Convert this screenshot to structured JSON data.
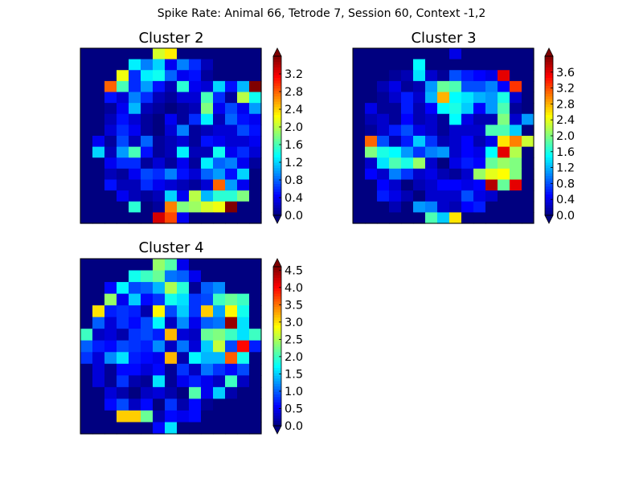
{
  "figure": {
    "title": "Spike Rate: Animal 66, Tetrode 7, Session 60, Context -1,2"
  },
  "colormap": {
    "name": "jet",
    "background_value": 0,
    "colorbar_extend": "both"
  },
  "chart_data": [
    {
      "type": "heatmap",
      "title": "Cluster 2",
      "vmin": 0,
      "vmax": 3.6,
      "colorbar_ticks": [
        "0.0",
        "0.4",
        "0.8",
        "1.2",
        "1.6",
        "2.0",
        "2.4",
        "2.8",
        "3.2"
      ],
      "grid": [
        [
          0,
          0,
          0,
          0,
          0,
          0,
          2.1,
          2.3,
          0,
          0,
          0,
          0,
          0,
          0,
          0
        ],
        [
          0,
          0,
          0,
          0,
          1.3,
          0.9,
          1.2,
          0.4,
          0.9,
          0.6,
          0.2,
          0,
          0,
          0,
          0
        ],
        [
          0,
          0,
          0,
          2.2,
          0.6,
          1.3,
          1.4,
          0.8,
          0.4,
          0.5,
          0.1,
          0,
          0,
          0,
          0
        ],
        [
          0,
          0,
          2.8,
          1.6,
          0.6,
          1.0,
          0.5,
          0.2,
          1.5,
          0.4,
          0.3,
          1.2,
          0.5,
          1.1,
          3.6
        ],
        [
          0,
          0,
          0.5,
          0.3,
          0.9,
          0.6,
          0.2,
          0.1,
          0.3,
          0.3,
          1.6,
          0.6,
          0.1,
          2.0,
          1.4
        ],
        [
          0,
          0,
          0.1,
          0.4,
          1.1,
          0.2,
          0.1,
          0,
          0.1,
          0.2,
          1.8,
          0.4,
          0.7,
          0.4,
          1.0
        ],
        [
          0,
          0,
          0.2,
          0.5,
          0.3,
          0.1,
          0,
          0.4,
          0.1,
          0.6,
          1.3,
          0.2,
          0.8,
          0.5,
          0.4
        ],
        [
          0,
          0,
          0.3,
          0.6,
          0.4,
          0.1,
          0,
          0.3,
          0.9,
          0.1,
          0.2,
          0.3,
          0.3,
          0.7,
          0.5
        ],
        [
          0,
          0.4,
          0.1,
          0.7,
          0.2,
          0.8,
          0.1,
          0.2,
          0.3,
          0.1,
          0.5,
          0.4,
          0.3,
          0.3,
          0.4
        ],
        [
          0,
          1.2,
          0.2,
          1.0,
          1.6,
          0.5,
          0.1,
          0.2,
          1.3,
          0.2,
          0.2,
          1.4,
          0.4,
          0.6,
          0.3
        ],
        [
          0,
          0,
          0.4,
          0.6,
          0.6,
          0.1,
          0.3,
          0.1,
          0.4,
          0.1,
          1.3,
          0.8,
          0.9,
          0.4,
          0.1
        ],
        [
          0,
          0,
          0.2,
          0.1,
          0.4,
          0.7,
          0.6,
          0.9,
          0.5,
          0.3,
          0.8,
          1.0,
          0.5,
          1.2,
          0
        ],
        [
          0,
          0,
          0.5,
          0.2,
          0.2,
          0.6,
          0.4,
          0.3,
          0.2,
          0.1,
          0.3,
          2.8,
          1.0,
          0.4,
          0
        ],
        [
          0,
          0,
          0,
          0.4,
          0.2,
          0.1,
          0.2,
          1.2,
          0.4,
          2.0,
          1.1,
          1.5,
          1.5,
          1.8,
          0
        ],
        [
          0,
          0,
          0,
          0,
          1.5,
          0,
          0.1,
          2.7,
          1.8,
          1.9,
          2.1,
          2.2,
          3.6,
          0,
          0
        ],
        [
          0,
          0,
          0,
          0,
          0,
          0,
          3.3,
          2.9,
          0.4,
          0,
          0,
          0,
          0,
          0,
          0
        ]
      ]
    },
    {
      "type": "heatmap",
      "title": "Cluster 3",
      "vmin": 0,
      "vmax": 4.0,
      "colorbar_ticks": [
        "0.0",
        "0.4",
        "0.8",
        "1.2",
        "1.6",
        "2.0",
        "2.4",
        "2.8",
        "3.2",
        "3.6"
      ],
      "grid": [
        [
          0,
          0,
          0,
          0,
          0,
          0,
          0,
          0,
          0.4,
          0,
          0,
          0,
          0,
          0,
          0
        ],
        [
          0,
          0,
          0,
          0,
          0,
          1.5,
          0,
          0,
          0,
          0,
          0,
          0,
          0,
          0,
          0
        ],
        [
          0,
          0,
          0,
          0.1,
          0.2,
          1.4,
          0.3,
          0.1,
          0.8,
          0.6,
          0.5,
          0.4,
          3.6,
          0,
          0
        ],
        [
          0,
          0,
          0.2,
          0.4,
          0.1,
          0.2,
          1.1,
          1.9,
          1.8,
          0.8,
          0.8,
          1.0,
          0.5,
          3.3,
          0
        ],
        [
          0,
          0,
          0.1,
          0.3,
          0.6,
          0.3,
          1.2,
          2.8,
          1.5,
          1.4,
          1.2,
          1.1,
          1.6,
          0.3,
          0
        ],
        [
          0,
          0.4,
          0.1,
          0.1,
          0.6,
          0.2,
          0.5,
          1.5,
          1.6,
          1.3,
          0.5,
          1.1,
          1.8,
          0.1,
          0
        ],
        [
          0,
          0.2,
          0.3,
          0.1,
          0.5,
          0.2,
          0.3,
          0.1,
          1.5,
          0.4,
          0.2,
          0.2,
          2.0,
          0.3,
          1.1
        ],
        [
          0,
          0.1,
          0.3,
          0.6,
          0.8,
          0.4,
          0.3,
          0.1,
          0.3,
          0.3,
          0.3,
          1.8,
          1.8,
          1.3,
          0
        ],
        [
          0,
          3.1,
          0.8,
          0.2,
          0.6,
          1.3,
          0.7,
          0.2,
          0.3,
          0.5,
          0.2,
          0.4,
          2.6,
          3.0,
          2.3
        ],
        [
          0,
          2.0,
          1.6,
          1.5,
          1.1,
          0.7,
          1.0,
          1.1,
          0.3,
          0.5,
          0.4,
          1.5,
          3.6,
          2.2,
          0
        ],
        [
          0,
          0.3,
          1.4,
          1.8,
          1.6,
          2.1,
          0.3,
          0,
          0.4,
          0.6,
          0.5,
          1.9,
          2.1,
          2.0,
          0
        ],
        [
          0,
          0.5,
          0.3,
          1.0,
          0.7,
          0.3,
          0.4,
          0.2,
          0.1,
          0.3,
          2.1,
          2.4,
          2.5,
          2.0,
          0
        ],
        [
          0,
          0,
          0.5,
          0.3,
          0,
          0.2,
          0.3,
          0.5,
          0.5,
          0.4,
          0.5,
          3.8,
          1.9,
          3.6,
          0
        ],
        [
          0,
          0,
          0.6,
          0.4,
          0.2,
          0,
          0.3,
          0.3,
          0.3,
          0.8,
          0.4,
          0.3,
          0,
          0,
          0
        ],
        [
          0,
          0,
          0,
          0.2,
          0,
          1.1,
          1.0,
          0.3,
          0.2,
          0.5,
          0.6,
          0,
          0,
          0,
          0
        ],
        [
          0,
          0,
          0,
          0,
          0,
          0,
          1.8,
          1.3,
          2.6,
          0,
          0,
          0,
          0,
          0,
          0
        ]
      ]
    },
    {
      "type": "heatmap",
      "title": "Cluster 4",
      "vmin": 0,
      "vmax": 4.6,
      "colorbar_ticks": [
        "0.0",
        "0.5",
        "1.0",
        "1.5",
        "2.0",
        "2.5",
        "3.0",
        "3.5",
        "4.0",
        "4.5"
      ],
      "grid": [
        [
          0,
          0,
          0,
          0,
          0,
          0,
          2.4,
          2.1,
          0.5,
          0,
          0,
          0,
          0,
          0,
          0
        ],
        [
          0,
          0,
          0,
          0,
          1.8,
          2.0,
          2.2,
          1.1,
          1.0,
          0.5,
          0,
          0,
          0,
          0,
          0
        ],
        [
          0,
          0,
          0.6,
          1.7,
          0.9,
          1.0,
          1.4,
          2.5,
          1.9,
          0.1,
          1.0,
          1.2,
          0,
          0,
          0
        ],
        [
          0,
          0,
          2.4,
          0.5,
          1.5,
          0.6,
          0.8,
          1.8,
          1.6,
          0.8,
          0.9,
          2.0,
          2.2,
          2.0,
          0
        ],
        [
          0,
          3.0,
          0.7,
          0.8,
          0.7,
          0.2,
          2.9,
          0.9,
          1.5,
          0.8,
          3.1,
          1.3,
          2.9,
          1.8,
          0
        ],
        [
          0,
          1.0,
          0.4,
          0.8,
          0.6,
          0.9,
          1.7,
          0.3,
          1.2,
          0.5,
          1.0,
          1.1,
          4.5,
          1.6,
          0
        ],
        [
          2.0,
          0.3,
          0.4,
          0.2,
          0.8,
          0.9,
          0.7,
          3.2,
          0.4,
          0.3,
          2.2,
          2.3,
          2.0,
          1.6,
          2.0
        ],
        [
          1.0,
          0.7,
          0.6,
          0.9,
          0.8,
          0.7,
          1.2,
          0.3,
          1.1,
          0.4,
          1.5,
          2.6,
          0.9,
          4.0,
          0.7
        ],
        [
          0.8,
          0.4,
          1.2,
          1.6,
          0.7,
          0.6,
          0.5,
          3.2,
          0.2,
          1.7,
          1.4,
          1.4,
          3.6,
          1.8,
          0
        ],
        [
          0,
          0.4,
          0.1,
          0.6,
          0.6,
          0.4,
          0.6,
          0.1,
          0.8,
          0.3,
          1.1,
          0.8,
          0.6,
          0.9,
          0
        ],
        [
          0,
          0.4,
          0.1,
          0.8,
          0.2,
          0.1,
          1.6,
          0.1,
          0.5,
          0.7,
          0.5,
          0.3,
          2.0,
          0.3,
          0
        ],
        [
          0,
          0,
          0.4,
          0.2,
          0,
          0.3,
          0.4,
          0.2,
          0,
          2.1,
          0.5,
          1.5,
          0.2,
          0,
          0
        ],
        [
          0,
          0,
          0.6,
          0.9,
          0.3,
          0.6,
          0,
          0.8,
          0.2,
          0.6,
          0.1,
          0,
          0,
          0,
          0
        ],
        [
          0,
          0,
          0,
          3.1,
          3.1,
          2.2,
          0.2,
          0.6,
          0.5,
          0.6,
          0,
          0,
          0,
          0,
          0
        ],
        [
          0,
          0,
          0,
          0,
          0,
          0,
          0.6,
          1.6,
          0,
          0,
          0,
          0,
          0,
          0,
          0
        ]
      ]
    }
  ]
}
